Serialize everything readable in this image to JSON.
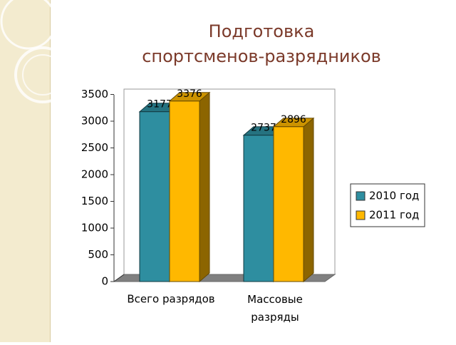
{
  "chart_data": {
    "type": "bar3d",
    "title": [
      "Подготовка",
      "спортсменов-разрядников"
    ],
    "categories": [
      "Всего разрядов",
      "Массовые\nразряды"
    ],
    "series": [
      {
        "name": "2010 год",
        "color": "#2e8ea0",
        "values": [
          3177,
          2737
        ]
      },
      {
        "name": "2011 год",
        "color": "#ffb800",
        "values": [
          3376,
          2896
        ]
      }
    ],
    "ylim": [
      0,
      3500
    ],
    "yticks": [
      0,
      500,
      1000,
      1500,
      2000,
      2500,
      3000,
      3500
    ],
    "legend": "right"
  }
}
